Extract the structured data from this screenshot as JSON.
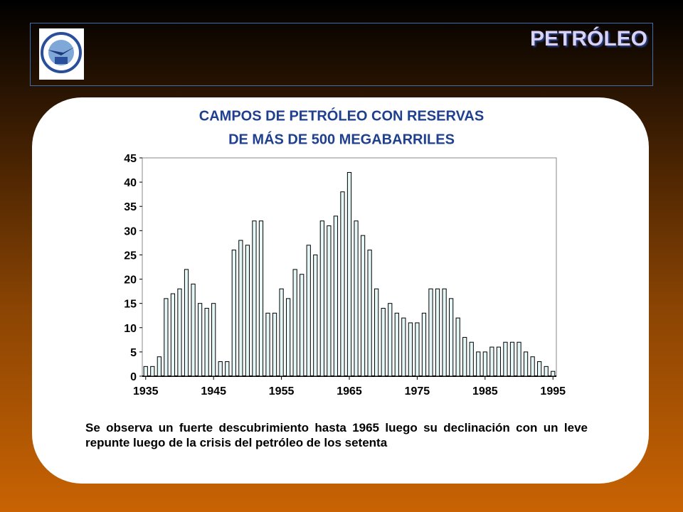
{
  "header": {
    "title": "PETRÓLEO"
  },
  "chart_data": {
    "type": "bar",
    "title": [
      "CAMPOS DE PETRÓLEO CON RESERVAS",
      "DE MÁS DE 500 MEGABARRILES"
    ],
    "x": [
      1935,
      1936,
      1937,
      1938,
      1939,
      1940,
      1941,
      1942,
      1943,
      1944,
      1945,
      1946,
      1947,
      1948,
      1949,
      1950,
      1951,
      1952,
      1953,
      1954,
      1955,
      1956,
      1957,
      1958,
      1959,
      1960,
      1961,
      1962,
      1963,
      1964,
      1965,
      1966,
      1967,
      1968,
      1969,
      1970,
      1971,
      1972,
      1973,
      1974,
      1975,
      1976,
      1977,
      1978,
      1979,
      1980,
      1981,
      1982,
      1983,
      1984,
      1985,
      1986,
      1987,
      1988,
      1989,
      1990,
      1991,
      1992,
      1993,
      1994,
      1995
    ],
    "values": [
      2,
      2,
      4,
      16,
      17,
      18,
      22,
      19,
      15,
      14,
      15,
      3,
      3,
      26,
      28,
      27,
      32,
      32,
      13,
      13,
      18,
      16,
      22,
      21,
      27,
      25,
      32,
      31,
      33,
      38,
      42,
      32,
      29,
      26,
      18,
      14,
      15,
      13,
      12,
      11,
      11,
      13,
      18,
      18,
      18,
      16,
      12,
      8,
      7,
      5,
      5,
      6,
      6,
      7,
      7,
      7,
      5,
      4,
      3,
      2,
      1
    ],
    "color": "#e6f7f7",
    "xlim": [
      1934.5,
      1995.5
    ],
    "xticks": [
      1935,
      1945,
      1955,
      1965,
      1975,
      1985,
      1995
    ],
    "ylim": [
      0,
      45
    ],
    "yticks": [
      0,
      5,
      10,
      15,
      20,
      25,
      30,
      35,
      40,
      45
    ]
  },
  "caption": "Se observa un fuerte descubrimiento hasta 1965 luego su declinación con un leve repunte luego de la crisis del petróleo de los setenta"
}
